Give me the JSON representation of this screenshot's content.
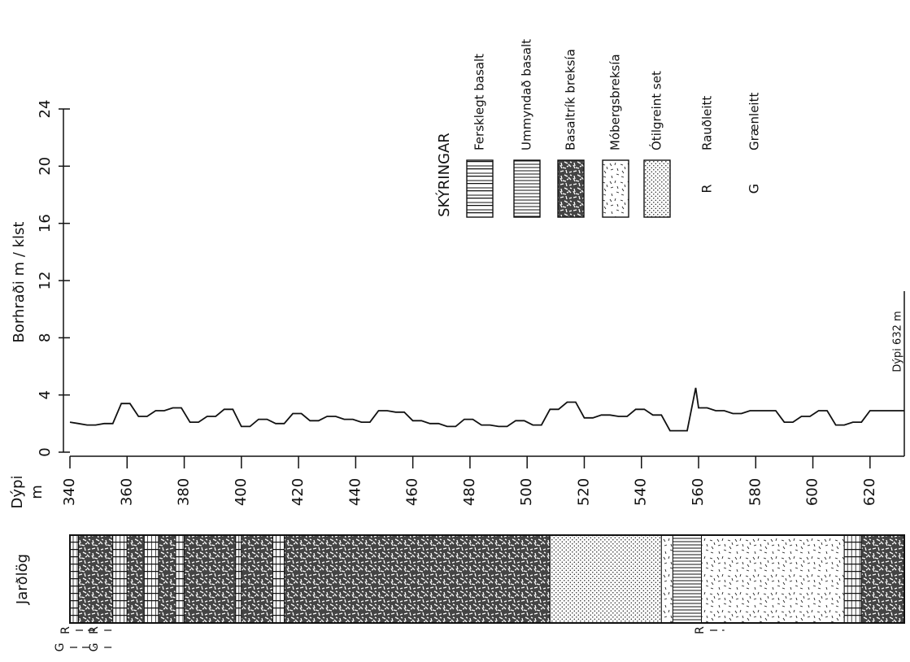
{
  "chart_data": {
    "type": "line",
    "orientation": "rotated",
    "ylabel": "Borhraði  m / klst",
    "xlabel_line1": "Dýpi",
    "xlabel_line2": "m",
    "ylim": [
      0,
      24
    ],
    "yticks": [
      "0",
      "4",
      "8",
      "12",
      "16",
      "20",
      "24"
    ],
    "xlim": [
      340,
      632
    ],
    "xticks": [
      "340",
      "360",
      "380",
      "400",
      "420",
      "440",
      "460",
      "480",
      "500",
      "520",
      "540",
      "560",
      "580",
      "600",
      "620"
    ],
    "end_depth_label": "Dýpi 632 m",
    "series": [
      {
        "x": [
          340,
          343,
          346,
          349,
          352,
          355,
          358,
          361,
          364,
          367,
          370,
          373,
          376,
          379,
          382,
          385,
          388,
          391,
          394,
          397,
          400,
          403,
          406,
          409,
          412,
          415,
          418,
          421,
          424,
          427,
          430,
          433,
          436,
          439,
          442,
          445,
          448,
          451,
          454,
          457,
          460,
          463,
          466,
          469,
          472,
          475,
          478,
          481,
          484,
          487,
          490,
          493,
          496,
          499,
          502,
          505,
          508,
          511,
          514,
          517,
          520,
          523,
          526,
          529,
          532,
          535,
          538,
          541,
          544,
          547,
          550,
          553,
          556,
          559,
          560,
          563,
          566,
          569,
          572,
          575,
          578,
          581,
          584,
          587,
          590,
          593,
          596,
          599,
          602,
          605,
          608,
          611,
          614,
          617,
          620,
          623,
          626,
          629,
          632
        ],
        "y": [
          2.1,
          2.0,
          1.9,
          1.9,
          2.0,
          2.0,
          3.4,
          3.4,
          2.5,
          2.5,
          2.9,
          2.9,
          3.1,
          3.1,
          2.1,
          2.1,
          2.5,
          2.5,
          3.0,
          3.0,
          1.8,
          1.8,
          2.3,
          2.3,
          2.0,
          2.0,
          2.7,
          2.7,
          2.2,
          2.2,
          2.5,
          2.5,
          2.3,
          2.3,
          2.1,
          2.1,
          2.9,
          2.9,
          2.8,
          2.8,
          2.2,
          2.2,
          2.0,
          2.0,
          1.8,
          1.8,
          2.3,
          2.3,
          1.9,
          1.9,
          1.8,
          1.8,
          2.2,
          2.2,
          1.9,
          1.9,
          3.0,
          3.0,
          3.5,
          3.5,
          2.4,
          2.4,
          2.6,
          2.6,
          2.5,
          2.5,
          3.0,
          3.0,
          2.6,
          2.6,
          1.5,
          1.5,
          1.5,
          4.5,
          3.1,
          3.1,
          2.9,
          2.9,
          2.7,
          2.7,
          2.9,
          2.9,
          2.9,
          2.9,
          2.1,
          2.1,
          2.5,
          2.5,
          2.9,
          2.9,
          1.9,
          1.9,
          2.1,
          2.1,
          2.9,
          2.9,
          2.9,
          2.9,
          2.9
        ]
      }
    ],
    "strata_label": "Jarðlög",
    "strata": [
      {
        "from": 340,
        "to": 343,
        "type": "fersklegt"
      },
      {
        "from": 343,
        "to": 355,
        "type": "basaltrik"
      },
      {
        "from": 355,
        "to": 360,
        "type": "fersklegt"
      },
      {
        "from": 360,
        "to": 366,
        "type": "basaltrik"
      },
      {
        "from": 366,
        "to": 371,
        "type": "fersklegt"
      },
      {
        "from": 371,
        "to": 377,
        "type": "basaltrik"
      },
      {
        "from": 377,
        "to": 380,
        "type": "fersklegt"
      },
      {
        "from": 380,
        "to": 398,
        "type": "basaltrik"
      },
      {
        "from": 398,
        "to": 400,
        "type": "fersklegt"
      },
      {
        "from": 400,
        "to": 411,
        "type": "basaltrik"
      },
      {
        "from": 411,
        "to": 415,
        "type": "fersklegt"
      },
      {
        "from": 415,
        "to": 508,
        "type": "basaltrik"
      },
      {
        "from": 508,
        "to": 547,
        "type": "otilgreint"
      },
      {
        "from": 547,
        "to": 551,
        "type": "mobergs"
      },
      {
        "from": 551,
        "to": 561,
        "type": "ummyndad"
      },
      {
        "from": 561,
        "to": 611,
        "type": "mobergs"
      },
      {
        "from": 611,
        "to": 617,
        "type": "fersklegt"
      },
      {
        "from": 617,
        "to": 632,
        "type": "basaltrik"
      }
    ],
    "markers": [
      {
        "letter": "G",
        "from": 340,
        "to": 349
      },
      {
        "letter": "R",
        "from": 342,
        "to": 349
      },
      {
        "letter": "G",
        "from": 352,
        "to": 355
      },
      {
        "letter": "R",
        "from": 352,
        "to": 355
      },
      {
        "letter": "R",
        "from": 564,
        "to": 569
      }
    ],
    "legend": {
      "title": "SKÝRINGAR",
      "items": [
        {
          "pattern": "fersklegt",
          "label": "Fersklegt basalt"
        },
        {
          "pattern": "ummyndad",
          "label": "Ummyndað basalt"
        },
        {
          "pattern": "basaltrik",
          "label": "Basaltrík breksía"
        },
        {
          "pattern": "mobergs",
          "label": "Móbergsbreksía"
        },
        {
          "pattern": "otilgreint",
          "label": "Ótilgreint set"
        },
        {
          "letter": "R",
          "label": "Rauðleitt"
        },
        {
          "letter": "G",
          "label": "Grænleitt"
        }
      ]
    }
  }
}
